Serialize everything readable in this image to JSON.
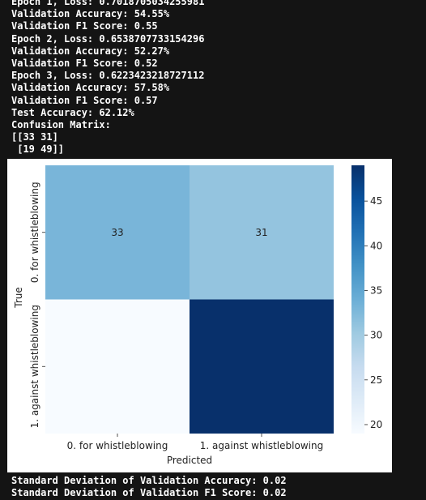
{
  "console": {
    "top_lines": [
      "Epoch 1, Loss: 0.7018705034255981",
      "Validation Accuracy: 54.55%",
      "Validation F1 Score: 0.55",
      "Epoch 2, Loss: 0.6538707733154296",
      "Validation Accuracy: 52.27%",
      "Validation F1 Score: 0.52",
      "Epoch 3, Loss: 0.6223423218727112",
      "Validation Accuracy: 57.58%",
      "Validation F1 Score: 0.57",
      "Test Accuracy: 62.12%",
      "Confusion Matrix:",
      "[[33 31]",
      " [19 49]]"
    ],
    "bottom_lines": [
      "Standard Deviation of Validation Accuracy: 0.02",
      "Standard Deviation of Validation F1 Score: 0.02"
    ]
  },
  "chart_data": {
    "type": "heatmap",
    "xlabel": "Predicted",
    "ylabel": "True",
    "x_categories": [
      "0. for whistleblowing",
      "1. against whistleblowing"
    ],
    "y_categories": [
      "0. for whistleblowing",
      "1. against whistleblowing"
    ],
    "matrix": [
      [
        33,
        31
      ],
      [
        19,
        49
      ]
    ],
    "cell_labels": [
      [
        "33",
        "31"
      ],
      [
        "",
        ""
      ]
    ],
    "colormap": "Blues",
    "colorbar": {
      "range": [
        19,
        49
      ],
      "ticks": [
        20,
        25,
        30,
        35,
        40,
        45
      ]
    }
  }
}
